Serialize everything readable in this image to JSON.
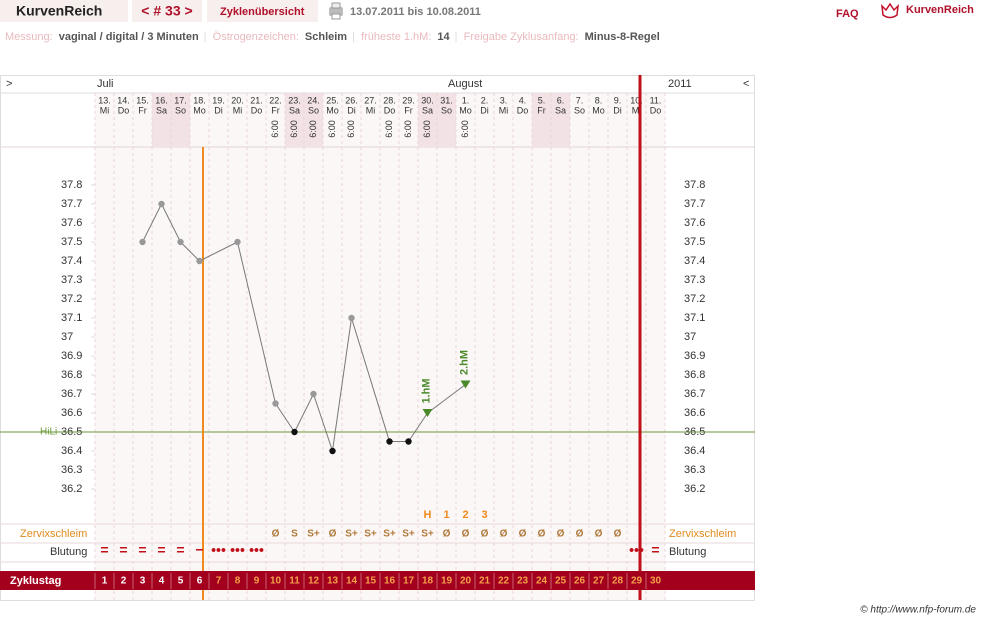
{
  "header": {
    "brand": "KurvenReich",
    "cycle_nav": "< # 33 >",
    "overview": "Zyklenübersicht",
    "date_range": "13.07.2011 bis 10.08.2011",
    "faq": "FAQ",
    "logo": "KurvenReich"
  },
  "info": [
    {
      "label": "Messung:",
      "value": "vaginal / digital / 3 Minuten"
    },
    {
      "label": "Östrogenzeichen:",
      "value": "Schleim"
    },
    {
      "label": "früheste 1.hM:",
      "value": "14"
    },
    {
      "label": "Freigabe Zyklusanfang:",
      "value": "Minus-8-Regel"
    }
  ],
  "nav": {
    "prev": ">",
    "next": "<"
  },
  "footer": "© http://www.nfp-forum.de",
  "chart_data": {
    "type": "line",
    "months": [
      "Juli",
      "August"
    ],
    "year": "2011",
    "days": [
      "13.",
      "14.",
      "15.",
      "16.",
      "17.",
      "18.",
      "19.",
      "20.",
      "21.",
      "22.",
      "23.",
      "24.",
      "25.",
      "26.",
      "27.",
      "28.",
      "29.",
      "30.",
      "31.",
      "1.",
      "2.",
      "3.",
      "4.",
      "5.",
      "6.",
      "7.",
      "8.",
      "9.",
      "10.",
      "11."
    ],
    "weekdays": [
      "Mi",
      "Do",
      "Fr",
      "Sa",
      "So",
      "Mo",
      "Di",
      "Mi",
      "Do",
      "Fr",
      "Sa",
      "So",
      "Mo",
      "Di",
      "Mi",
      "Do",
      "Fr",
      "Sa",
      "So",
      "Mo",
      "Di",
      "Mi",
      "Do",
      "Fr",
      "Sa",
      "So",
      "Mo",
      "Di",
      "Mi",
      "Do"
    ],
    "times": [
      null,
      null,
      null,
      null,
      null,
      null,
      null,
      null,
      null,
      "6:00",
      "6:00",
      "6:00",
      "6:00",
      "6:00",
      null,
      "6:00",
      "6:00",
      "6:00",
      null,
      "6:00",
      null,
      null,
      null,
      null,
      null,
      null,
      null,
      null,
      null,
      null
    ],
    "values": [
      null,
      null,
      37.5,
      37.7,
      37.5,
      37.4,
      null,
      37.5,
      null,
      36.65,
      36.5,
      36.7,
      36.4,
      37.1,
      null,
      36.45,
      36.45,
      36.6,
      null,
      36.75,
      null,
      null,
      null,
      null,
      null,
      null,
      null,
      null,
      null,
      null
    ],
    "point_colors": [
      null,
      null,
      "#999999",
      "#999999",
      "#999999",
      "#999999",
      null,
      "#999999",
      null,
      "#999999",
      "#111111",
      "#999999",
      "#111111",
      "#999999",
      null,
      "#111111",
      "#111111",
      "#4a8a2a",
      null,
      "#4a8a2a",
      null,
      null,
      null,
      null,
      null,
      null,
      null,
      null,
      null,
      null
    ],
    "line_color": "#777777",
    "annotations": [
      {
        "text": "1.hM",
        "x": 17
      },
      {
        "text": "2.hM",
        "x": 19
      }
    ],
    "coverline": {
      "label": "HiLi",
      "value": 36.5,
      "color": "#6a9a3a"
    },
    "ylim": [
      36.0,
      38.0
    ],
    "yticks": [
      36.2,
      36.3,
      36.4,
      36.5,
      36.6,
      36.7,
      36.8,
      36.9,
      37,
      37.1,
      37.2,
      37.3,
      37.4,
      37.5,
      37.6,
      37.7,
      37.8
    ],
    "peak_count": [
      null,
      null,
      null,
      null,
      null,
      null,
      null,
      null,
      null,
      null,
      null,
      null,
      null,
      null,
      null,
      null,
      null,
      "H",
      "1",
      "2",
      "3",
      null,
      null,
      null,
      null,
      null,
      null,
      null,
      null,
      null
    ],
    "cervical_mucus": {
      "label": "Zervixschleim",
      "values": [
        null,
        null,
        null,
        null,
        null,
        null,
        null,
        null,
        null,
        "Ø",
        "S",
        "S+",
        "Ø",
        "S+",
        "S+",
        "S+",
        "S+",
        "S+",
        "Ø",
        "Ø",
        "Ø",
        "Ø",
        "Ø",
        "Ø",
        "Ø",
        "Ø",
        "Ø",
        "Ø",
        null,
        null
      ]
    },
    "bleeding": {
      "label": "Blutung",
      "values": [
        "=",
        "=",
        "=",
        "=",
        "=",
        "−",
        "•••",
        "•••",
        "•••",
        null,
        null,
        null,
        null,
        null,
        null,
        null,
        null,
        null,
        null,
        null,
        null,
        null,
        null,
        null,
        null,
        null,
        null,
        null,
        "•••",
        "="
      ]
    },
    "cycle_day": {
      "label": "Zyklustag",
      "values": [
        1,
        2,
        3,
        4,
        5,
        6,
        7,
        8,
        9,
        10,
        11,
        12,
        13,
        14,
        15,
        16,
        17,
        18,
        19,
        20,
        21,
        22,
        23,
        24,
        25,
        26,
        27,
        28,
        29,
        30
      ]
    }
  }
}
